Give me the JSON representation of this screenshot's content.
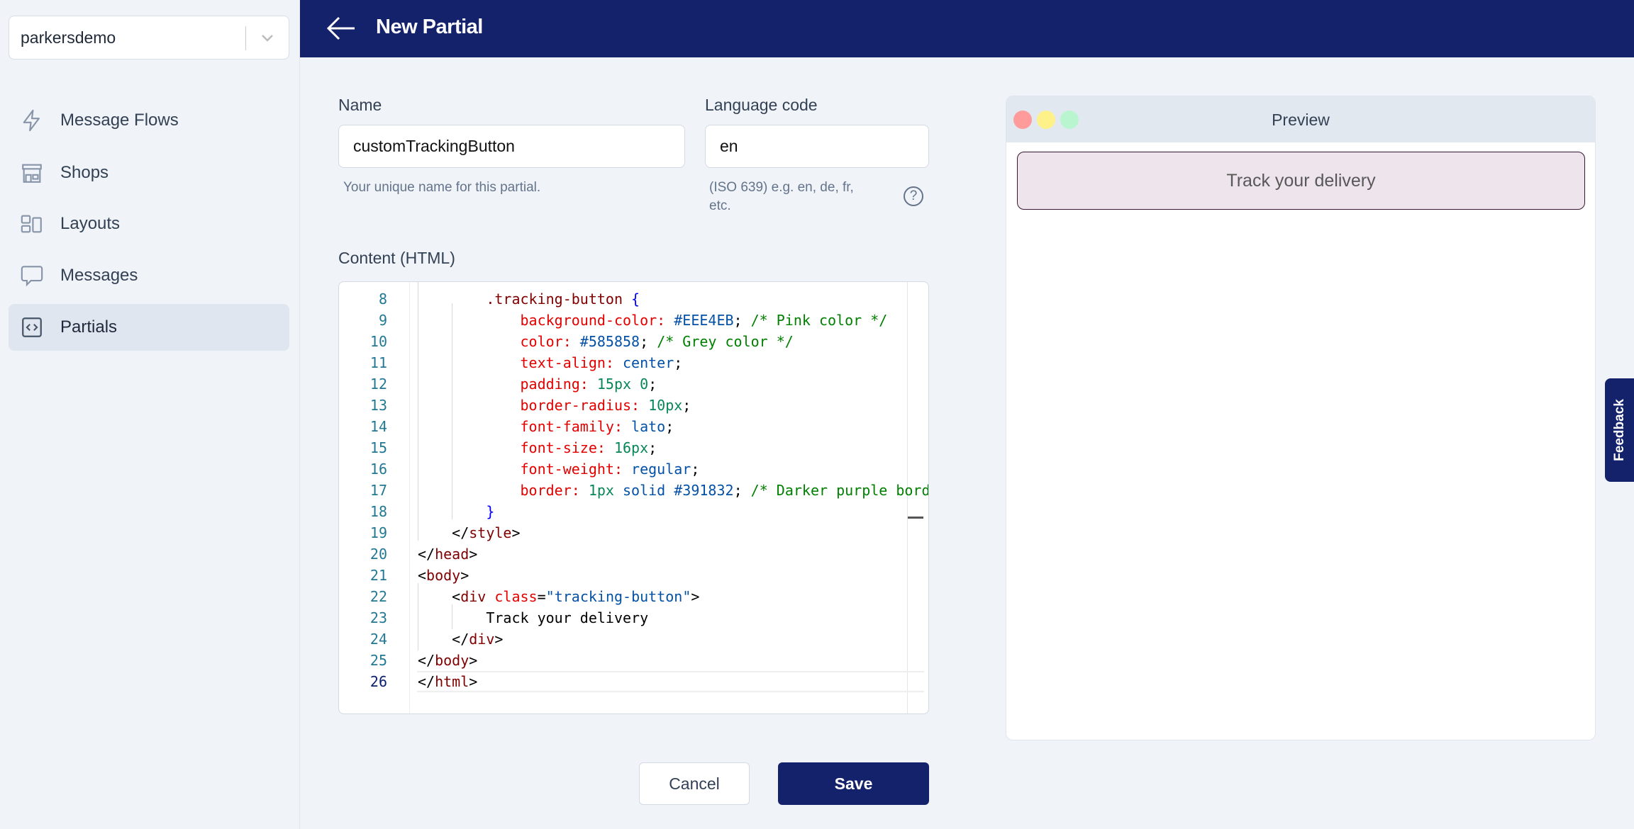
{
  "sidebar": {
    "org": "parkersdemo",
    "items": [
      {
        "label": "Message Flows",
        "icon": "lightning-icon"
      },
      {
        "label": "Shops",
        "icon": "shop-icon"
      },
      {
        "label": "Layouts",
        "icon": "layout-icon"
      },
      {
        "label": "Messages",
        "icon": "chat-bubble-icon"
      },
      {
        "label": "Partials",
        "icon": "code-icon",
        "active": true
      }
    ]
  },
  "header": {
    "title": "New Partial"
  },
  "form": {
    "name_label": "Name",
    "name_value": "customTrackingButton",
    "name_help": "Your unique name for this partial.",
    "lang_label": "Language code",
    "lang_value": "en",
    "lang_help_1": "(ISO 639) e.g. en, de, fr,",
    "lang_help_2": "etc.",
    "help_icon": "?",
    "content_label": "Content (HTML)"
  },
  "editor": {
    "current_line": 26,
    "lines": [
      {
        "n": "8",
        "html": "    <span class='t'>.tracking-button</span> <span class='b'>{</span>"
      },
      {
        "n": "9",
        "html": "        <span class='a'>background-color:</span> <span class='v'>#EEE4EB</span>; <span class='c'>/* Pink color */</span>"
      },
      {
        "n": "10",
        "html": "        <span class='a'>color:</span> <span class='v'>#585858</span>; <span class='c'>/* Grey color */</span>"
      },
      {
        "n": "11",
        "html": "        <span class='a'>text-align:</span> <span class='v'>center</span>;"
      },
      {
        "n": "12",
        "html": "        <span class='a'>padding:</span> <span class='n'>15px 0</span>;"
      },
      {
        "n": "13",
        "html": "        <span class='a'>border-radius:</span> <span class='n'>10px</span>;"
      },
      {
        "n": "14",
        "html": "        <span class='a'>font-family:</span> <span class='v'>lato</span>;"
      },
      {
        "n": "15",
        "html": "        <span class='a'>font-size:</span> <span class='n'>16px</span>;"
      },
      {
        "n": "16",
        "html": "        <span class='a'>font-weight:</span> <span class='v'>regular</span>;"
      },
      {
        "n": "17",
        "html": "        <span class='a'>border:</span> <span class='n'>1px</span> <span class='v'>solid #391832</span>; <span class='c'>/* Darker purple bord</span>"
      },
      {
        "n": "18",
        "html": "    <span class='b'>}</span>"
      },
      {
        "n": "19",
        "html": "&lt;/<span class='t'>style</span>&gt;"
      },
      {
        "n": "20",
        "html": "&lt;/<span class='t'>head</span>&gt;"
      },
      {
        "n": "21",
        "html": "&lt;<span class='t'>body</span>&gt;"
      },
      {
        "n": "22",
        "html": "    &lt;<span class='t'>div</span> <span class='a'>class</span>=<span class='v'>\"tracking-button\"</span>&gt;"
      },
      {
        "n": "23",
        "html": "        Track your delivery"
      },
      {
        "n": "24",
        "html": "    &lt;/<span class='t'>div</span>&gt;"
      },
      {
        "n": "25",
        "html": "&lt;/<span class='t'>body</span>&gt;"
      },
      {
        "n": "26",
        "html": "&lt;/<span class='t'>html</span>&gt;"
      }
    ],
    "indent_prefix": [
      "    ",
      "    ",
      "    ",
      "    ",
      "    ",
      "    ",
      "    ",
      "    ",
      "    ",
      "    ",
      "    ",
      "    ",
      "",
      "",
      "",
      "",
      "",
      "",
      ""
    ]
  },
  "buttons": {
    "cancel": "Cancel",
    "save": "Save"
  },
  "preview": {
    "title": "Preview",
    "button_text": "Track your delivery",
    "window_dots": [
      "#ff9b9b",
      "#fff18a",
      "#b9f6cf"
    ]
  },
  "feedback": {
    "label": "Feedback",
    "icon": "lightbulb-icon"
  },
  "colors": {
    "brand": "#14216b",
    "preview_bg": "#EEE4EB",
    "preview_border": "#391832",
    "preview_text": "#585858"
  }
}
